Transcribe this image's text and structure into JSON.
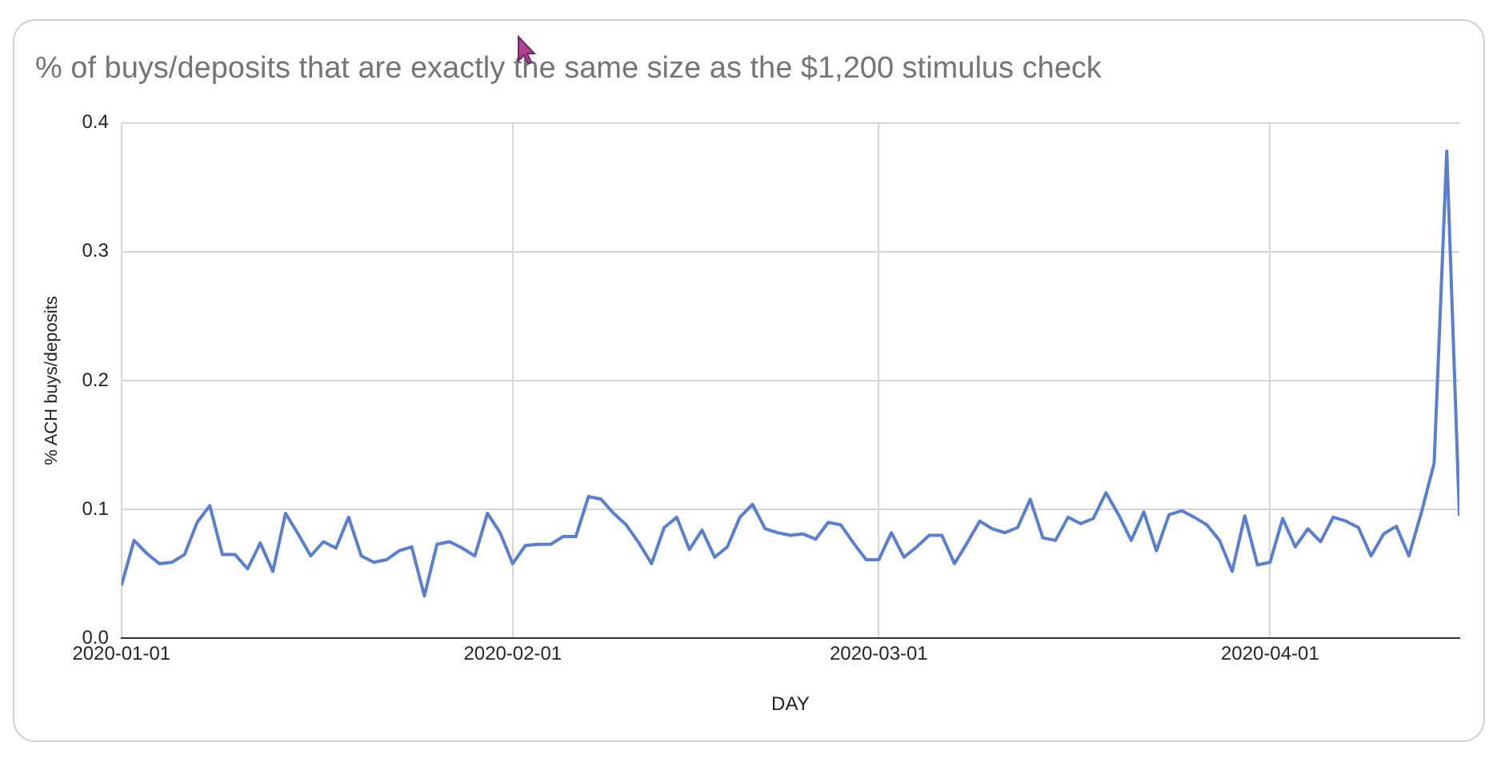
{
  "chart_data": {
    "type": "line",
    "title": "% of buys/deposits that are exactly the same size as the $1,200 stimulus check",
    "xlabel": "DAY",
    "ylabel": "% ACH buys/deposits",
    "x": [
      "2020-01-01",
      "2020-01-02",
      "2020-01-03",
      "2020-01-04",
      "2020-01-05",
      "2020-01-06",
      "2020-01-07",
      "2020-01-08",
      "2020-01-09",
      "2020-01-10",
      "2020-01-11",
      "2020-01-12",
      "2020-01-13",
      "2020-01-14",
      "2020-01-15",
      "2020-01-16",
      "2020-01-17",
      "2020-01-18",
      "2020-01-19",
      "2020-01-20",
      "2020-01-21",
      "2020-01-22",
      "2020-01-23",
      "2020-01-24",
      "2020-01-25",
      "2020-01-26",
      "2020-01-27",
      "2020-01-28",
      "2020-01-29",
      "2020-01-30",
      "2020-01-31",
      "2020-02-01",
      "2020-02-02",
      "2020-02-03",
      "2020-02-04",
      "2020-02-05",
      "2020-02-06",
      "2020-02-07",
      "2020-02-08",
      "2020-02-09",
      "2020-02-10",
      "2020-02-11",
      "2020-02-12",
      "2020-02-13",
      "2020-02-14",
      "2020-02-15",
      "2020-02-16",
      "2020-02-17",
      "2020-02-18",
      "2020-02-19",
      "2020-02-20",
      "2020-02-21",
      "2020-02-22",
      "2020-02-23",
      "2020-02-24",
      "2020-02-25",
      "2020-02-26",
      "2020-02-27",
      "2020-02-28",
      "2020-02-29",
      "2020-03-01",
      "2020-03-02",
      "2020-03-03",
      "2020-03-04",
      "2020-03-05",
      "2020-03-06",
      "2020-03-07",
      "2020-03-08",
      "2020-03-09",
      "2020-03-10",
      "2020-03-11",
      "2020-03-12",
      "2020-03-13",
      "2020-03-14",
      "2020-03-15",
      "2020-03-16",
      "2020-03-17",
      "2020-03-18",
      "2020-03-19",
      "2020-03-20",
      "2020-03-21",
      "2020-03-22",
      "2020-03-23",
      "2020-03-24",
      "2020-03-25",
      "2020-03-26",
      "2020-03-27",
      "2020-03-28",
      "2020-03-29",
      "2020-03-30",
      "2020-03-31",
      "2020-04-01",
      "2020-04-02",
      "2020-04-03",
      "2020-04-04",
      "2020-04-05",
      "2020-04-06",
      "2020-04-07",
      "2020-04-08",
      "2020-04-09",
      "2020-04-10",
      "2020-04-11",
      "2020-04-12",
      "2020-04-13",
      "2020-04-14",
      "2020-04-15",
      "2020-04-16"
    ],
    "series": [
      {
        "color": "#5b7fcf",
        "values": [
          0.041,
          0.076,
          0.066,
          0.058,
          0.059,
          0.065,
          0.09,
          0.103,
          0.065,
          0.065,
          0.054,
          0.074,
          0.052,
          0.097,
          0.081,
          0.064,
          0.075,
          0.07,
          0.094,
          0.064,
          0.059,
          0.061,
          0.068,
          0.071,
          0.033,
          0.073,
          0.075,
          0.07,
          0.064,
          0.097,
          0.082,
          0.058,
          0.072,
          0.073,
          0.073,
          0.079,
          0.079,
          0.11,
          0.108,
          0.097,
          0.088,
          0.074,
          0.058,
          0.086,
          0.094,
          0.069,
          0.084,
          0.063,
          0.071,
          0.094,
          0.104,
          0.085,
          0.082,
          0.08,
          0.081,
          0.077,
          0.09,
          0.088,
          0.074,
          0.061,
          0.061,
          0.082,
          0.063,
          0.071,
          0.08,
          0.08,
          0.058,
          0.074,
          0.091,
          0.085,
          0.082,
          0.086,
          0.108,
          0.078,
          0.076,
          0.094,
          0.089,
          0.093,
          0.113,
          0.096,
          0.076,
          0.098,
          0.068,
          0.096,
          0.099,
          0.094,
          0.088,
          0.076,
          0.052,
          0.095,
          0.057,
          0.059,
          0.093,
          0.071,
          0.085,
          0.075,
          0.094,
          0.091,
          0.086,
          0.064,
          0.081,
          0.087,
          0.064,
          0.098,
          0.136,
          0.378,
          0.095
        ]
      }
    ],
    "xlim": [
      "2020-01-01",
      "2020-04-16"
    ],
    "xticks": [
      "2020-01-01",
      "2020-02-01",
      "2020-03-01",
      "2020-04-01"
    ],
    "ylim": [
      0,
      0.4
    ],
    "yticks": [
      {
        "value": 0,
        "label": "0.0"
      },
      0.1,
      0.2,
      0.3,
      0.4
    ],
    "grid": true,
    "legend": false,
    "marker": "none",
    "line_style": "solid"
  }
}
